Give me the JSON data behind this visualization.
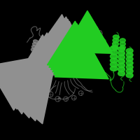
{
  "background_color": "#000000",
  "gray": "#909090",
  "green": "#22cc22",
  "gray_dark": "#606060",
  "green_dark": "#118811"
}
